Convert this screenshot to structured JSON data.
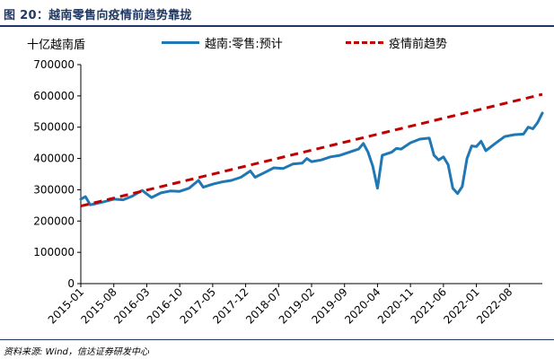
{
  "header": {
    "title": "图 20：越南零售向疫情前趋势靠拢"
  },
  "footer": {
    "source": "资料来源: Wind，信达证券研发中心"
  },
  "chart_data": {
    "type": "line",
    "ylabel": "十亿越南盾",
    "ylim": [
      0,
      700000
    ],
    "yticks": [
      0,
      100000,
      200000,
      300000,
      400000,
      500000,
      600000,
      700000
    ],
    "xlim": [
      "2015-01",
      "2023-03"
    ],
    "xticks": [
      "2015-01",
      "2015-08",
      "2016-03",
      "2016-10",
      "2017-05",
      "2017-12",
      "2018-07",
      "2019-02",
      "2019-09",
      "2020-04",
      "2020-11",
      "2021-06",
      "2022-01",
      "2022-08"
    ],
    "grid": false,
    "legend": "top",
    "series": [
      {
        "name": "越南:零售:预计",
        "color": "#1f77b4",
        "style": "solid",
        "points": [
          [
            "2015-01",
            270000
          ],
          [
            "2015-02",
            278000
          ],
          [
            "2015-03",
            252000
          ],
          [
            "2015-04",
            255000
          ],
          [
            "2015-06",
            262000
          ],
          [
            "2015-08",
            270000
          ],
          [
            "2015-10",
            268000
          ],
          [
            "2015-12",
            280000
          ],
          [
            "2016-02",
            298000
          ],
          [
            "2016-04",
            275000
          ],
          [
            "2016-06",
            290000
          ],
          [
            "2016-08",
            296000
          ],
          [
            "2016-10",
            295000
          ],
          [
            "2016-12",
            305000
          ],
          [
            "2017-02",
            330000
          ],
          [
            "2017-03",
            308000
          ],
          [
            "2017-05",
            318000
          ],
          [
            "2017-07",
            325000
          ],
          [
            "2017-09",
            330000
          ],
          [
            "2017-11",
            340000
          ],
          [
            "2018-01",
            360000
          ],
          [
            "2018-02",
            340000
          ],
          [
            "2018-04",
            355000
          ],
          [
            "2018-06",
            370000
          ],
          [
            "2018-08",
            368000
          ],
          [
            "2018-10",
            382000
          ],
          [
            "2018-12",
            385000
          ],
          [
            "2019-01",
            400000
          ],
          [
            "2019-02",
            390000
          ],
          [
            "2019-04",
            395000
          ],
          [
            "2019-06",
            405000
          ],
          [
            "2019-08",
            410000
          ],
          [
            "2019-10",
            420000
          ],
          [
            "2019-12",
            430000
          ],
          [
            "2020-01",
            448000
          ],
          [
            "2020-02",
            420000
          ],
          [
            "2020-03",
            375000
          ],
          [
            "2020-04",
            305000
          ],
          [
            "2020-05",
            410000
          ],
          [
            "2020-07",
            420000
          ],
          [
            "2020-08",
            432000
          ],
          [
            "2020-09",
            430000
          ],
          [
            "2020-11",
            450000
          ],
          [
            "2021-01",
            462000
          ],
          [
            "2021-03",
            465000
          ],
          [
            "2021-04",
            410000
          ],
          [
            "2021-05",
            395000
          ],
          [
            "2021-06",
            405000
          ],
          [
            "2021-07",
            380000
          ],
          [
            "2021-08",
            305000
          ],
          [
            "2021-09",
            288000
          ],
          [
            "2021-10",
            310000
          ],
          [
            "2021-11",
            400000
          ],
          [
            "2021-12",
            440000
          ],
          [
            "2022-01",
            438000
          ],
          [
            "2022-02",
            455000
          ],
          [
            "2022-03",
            425000
          ],
          [
            "2022-05",
            448000
          ],
          [
            "2022-07",
            470000
          ],
          [
            "2022-09",
            476000
          ],
          [
            "2022-11",
            478000
          ],
          [
            "2022-12",
            500000
          ],
          [
            "2023-01",
            495000
          ],
          [
            "2023-02",
            515000
          ],
          [
            "2023-03",
            545000
          ]
        ]
      },
      {
        "name": "疫情前趋势",
        "color": "#c00000",
        "style": "dashed",
        "points": [
          [
            "2015-01",
            248000
          ],
          [
            "2023-03",
            605000
          ]
        ]
      }
    ]
  }
}
